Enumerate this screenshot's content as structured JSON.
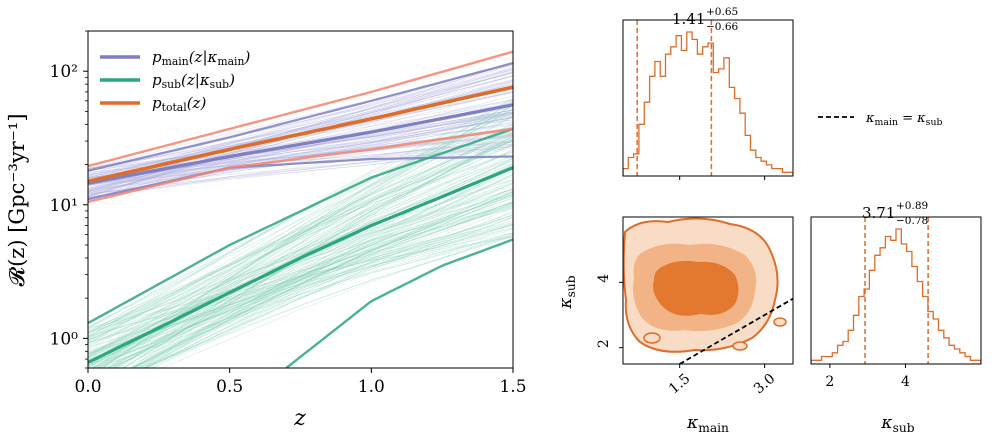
{
  "chart_data": [
    {
      "type": "line",
      "title": "",
      "xlabel": "z",
      "ylabel": "𝓡(z) [Gpc⁻³yr⁻¹]",
      "xlim": [
        0.0,
        1.5
      ],
      "ylim": [
        0.6,
        200
      ],
      "yscale": "log",
      "x_ticks": [
        0.0,
        0.5,
        1.0,
        1.5
      ],
      "x_tick_labels": [
        "0.0",
        "0.5",
        "1.0",
        "1.5"
      ],
      "y_ticks": [
        1,
        10,
        100
      ],
      "y_tick_labels": [
        "10⁰",
        "10¹",
        "10²"
      ],
      "legend_placement": "upper-left",
      "legend": [
        {
          "label": "p_main(z|κ_main)",
          "color": "#7f7fc2"
        },
        {
          "label": "p_sub(z|κ_sub)",
          "color": "#2ca67f"
        },
        {
          "label": "p_total(z)",
          "color": "#de6d2a"
        }
      ],
      "series": [
        {
          "name": "p_main median",
          "color": "#7f7fc2",
          "x": [
            0.0,
            0.5,
            1.0,
            1.5
          ],
          "values": [
            14.5,
            23,
            35,
            56
          ]
        },
        {
          "name": "p_main upper 90%",
          "color": "#7f7fc2",
          "x": [
            0.0,
            0.5,
            1.0,
            1.5
          ],
          "values": [
            18,
            32,
            60,
            115
          ]
        },
        {
          "name": "p_main lower 90%",
          "color": "#7f7fc2",
          "x": [
            0.0,
            0.5,
            1.0,
            1.5
          ],
          "values": [
            11,
            19,
            22,
            23
          ]
        },
        {
          "name": "p_sub median",
          "color": "#2ca67f",
          "x": [
            0.0,
            0.25,
            0.5,
            0.75,
            1.0,
            1.25,
            1.5
          ],
          "values": [
            0.66,
            1.2,
            2.2,
            4.0,
            7.0,
            11.5,
            19
          ]
        },
        {
          "name": "p_sub upper 90%",
          "color": "#2ca67f",
          "x": [
            0.0,
            0.5,
            1.0,
            1.5
          ],
          "values": [
            1.3,
            5.0,
            16,
            37
          ]
        },
        {
          "name": "p_sub lower 90%",
          "color": "#2ca67f",
          "x": [
            0.7,
            1.0,
            1.25,
            1.5
          ],
          "values": [
            0.6,
            1.9,
            3.5,
            5.5
          ]
        },
        {
          "name": "p_total median",
          "color": "#de6d2a",
          "x": [
            0.0,
            0.5,
            1.0,
            1.5
          ],
          "values": [
            15,
            26,
            44,
            76
          ]
        },
        {
          "name": "p_total upper 90%",
          "color": "#f4846a",
          "x": [
            0.0,
            0.5,
            1.0,
            1.5
          ],
          "values": [
            19.5,
            37,
            70,
            140
          ]
        },
        {
          "name": "p_total lower 90%",
          "color": "#f4846a",
          "x": [
            0.0,
            0.5,
            1.0,
            1.5
          ],
          "values": [
            10.5,
            19,
            26,
            37
          ]
        }
      ]
    },
    {
      "type": "histogram",
      "title": "1.41^{+0.65}_{-0.66}",
      "title_main": "1.41",
      "title_plus": "+0.65",
      "title_minus": "−0.66",
      "parameter": "κ_main",
      "xlim": [
        0.5,
        3.5
      ],
      "x_ticks": [
        1.5,
        3.0
      ],
      "median": 1.41,
      "quantile_lines": [
        0.75,
        2.06
      ],
      "color": "#de6d2a",
      "bin_counts": [
        2,
        5,
        6,
        14,
        20,
        27,
        31,
        27,
        33,
        35,
        38,
        34,
        39,
        37,
        33,
        35,
        36,
        28,
        29,
        32,
        24,
        21,
        17,
        11,
        7,
        5,
        4,
        3,
        2,
        2,
        1,
        1
      ]
    },
    {
      "type": "histogram",
      "title": "3.71^{+0.89}_{-0.78}",
      "title_main": "3.71",
      "title_plus": "+0.89",
      "title_minus": "−0.78",
      "parameter": "κ_sub",
      "xlim": [
        1.5,
        6.0
      ],
      "x_ticks": [
        2,
        4
      ],
      "x_tick_labels": [
        "2",
        "4"
      ],
      "median": 3.71,
      "quantile_lines": [
        2.93,
        4.6
      ],
      "color": "#de6d2a",
      "bin_counts": [
        1,
        1,
        2,
        2,
        3,
        5,
        6,
        9,
        13,
        18,
        20,
        25,
        29,
        31,
        34,
        33,
        36,
        32,
        30,
        26,
        22,
        18,
        14,
        12,
        9,
        7,
        5,
        4,
        3,
        2,
        1,
        1
      ]
    },
    {
      "type": "contour",
      "title": "",
      "xlabel": "κ_main",
      "ylabel": "κ_sub",
      "xlim": [
        0.5,
        3.5
      ],
      "ylim": [
        1.5,
        6.0
      ],
      "x_ticks": [
        1.5,
        3.0
      ],
      "x_tick_labels": [
        "1.5",
        "3.0"
      ],
      "y_ticks": [
        2,
        4
      ],
      "y_tick_labels": [
        "2",
        "4"
      ],
      "color": "#de6d2a",
      "center": [
        1.4,
        3.7
      ],
      "levels": [
        "90%",
        "68%",
        "39%"
      ],
      "reference_line": {
        "label": "κ_main = κ_sub",
        "style": "dashed",
        "color": "#000000",
        "x": [
          1.5,
          3.5
        ],
        "y": [
          1.5,
          3.5
        ]
      }
    }
  ],
  "legend_right": {
    "label": "κ_main = κ_sub"
  }
}
